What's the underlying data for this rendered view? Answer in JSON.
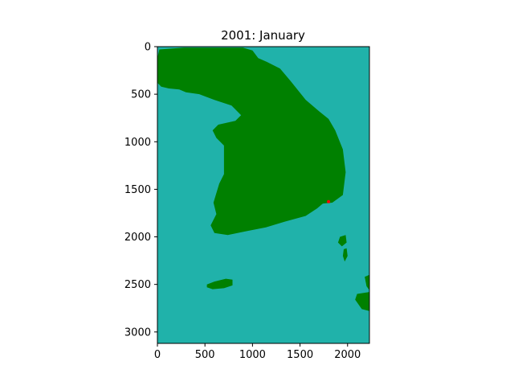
{
  "chart_data": {
    "type": "heatmap",
    "title": "2001: January",
    "xlabel": "",
    "ylabel": "",
    "xlim": [
      0,
      2230
    ],
    "ylim": [
      3120,
      0
    ],
    "x_ticks": [
      0,
      500,
      1000,
      1500,
      2000
    ],
    "y_ticks": [
      0,
      500,
      1000,
      1500,
      2000,
      2500,
      3000
    ],
    "grid": false,
    "legend": "none",
    "colors": {
      "sea": "#20b2aa",
      "land": "#008000",
      "marker": "#ff0000"
    },
    "land_polygons": [
      {
        "name": "mainland",
        "points": [
          [
            20,
            30
          ],
          [
            280,
            10
          ],
          [
            450,
            10
          ],
          [
            700,
            10
          ],
          [
            900,
            10
          ],
          [
            1000,
            40
          ],
          [
            1060,
            120
          ],
          [
            1150,
            160
          ],
          [
            1290,
            230
          ],
          [
            1400,
            360
          ],
          [
            1560,
            560
          ],
          [
            1700,
            680
          ],
          [
            1800,
            760
          ],
          [
            1870,
            880
          ],
          [
            1950,
            1080
          ],
          [
            1980,
            1320
          ],
          [
            1950,
            1560
          ],
          [
            1840,
            1640
          ],
          [
            1740,
            1650
          ],
          [
            1680,
            1700
          ],
          [
            1560,
            1780
          ],
          [
            1340,
            1840
          ],
          [
            1140,
            1900
          ],
          [
            940,
            1940
          ],
          [
            740,
            1980
          ],
          [
            600,
            1960
          ],
          [
            560,
            1880
          ],
          [
            620,
            1760
          ],
          [
            590,
            1640
          ],
          [
            620,
            1540
          ],
          [
            650,
            1440
          ],
          [
            700,
            1340
          ],
          [
            700,
            1180
          ],
          [
            700,
            1040
          ],
          [
            620,
            960
          ],
          [
            580,
            880
          ],
          [
            640,
            820
          ],
          [
            820,
            780
          ],
          [
            880,
            720
          ],
          [
            780,
            620
          ],
          [
            600,
            560
          ],
          [
            440,
            500
          ],
          [
            300,
            480
          ],
          [
            230,
            450
          ],
          [
            120,
            440
          ],
          [
            40,
            420
          ],
          [
            0,
            380
          ],
          [
            0,
            120
          ]
        ]
      },
      {
        "name": "jeju-island",
        "points": [
          [
            520,
            2500
          ],
          [
            600,
            2470
          ],
          [
            720,
            2440
          ],
          [
            790,
            2450
          ],
          [
            790,
            2510
          ],
          [
            700,
            2540
          ],
          [
            580,
            2550
          ],
          [
            520,
            2530
          ]
        ]
      },
      {
        "name": "east-coast-islet",
        "points": [
          [
            1920,
            2000
          ],
          [
            1980,
            1980
          ],
          [
            1990,
            2060
          ],
          [
            1940,
            2100
          ],
          [
            1900,
            2060
          ]
        ]
      },
      {
        "name": "tsushima-island",
        "points": [
          [
            1960,
            2130
          ],
          [
            1990,
            2120
          ],
          [
            2000,
            2200
          ],
          [
            1970,
            2260
          ],
          [
            1950,
            2200
          ]
        ]
      },
      {
        "name": "kyushu-north",
        "points": [
          [
            2100,
            2600
          ],
          [
            2230,
            2580
          ],
          [
            2230,
            2780
          ],
          [
            2150,
            2760
          ],
          [
            2080,
            2660
          ]
        ]
      },
      {
        "name": "kyushu-east",
        "points": [
          [
            2180,
            2420
          ],
          [
            2230,
            2400
          ],
          [
            2230,
            2560
          ],
          [
            2200,
            2520
          ]
        ]
      }
    ],
    "markers": [
      {
        "name": "busan-marker",
        "x": 1800,
        "y": 1630
      }
    ]
  }
}
